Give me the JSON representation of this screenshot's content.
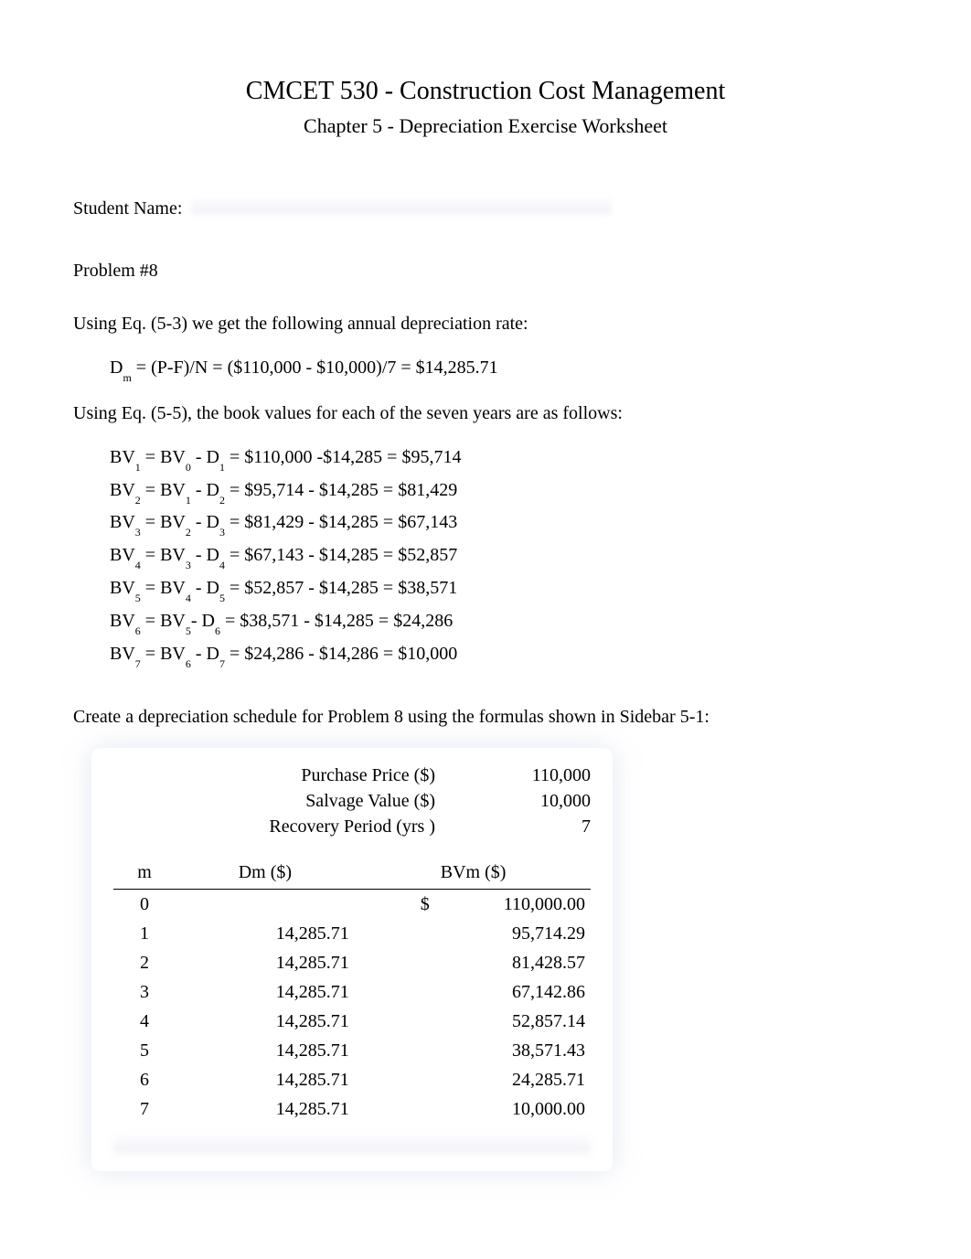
{
  "header": {
    "title": "CMCET 530 - Construction Cost Management",
    "subtitle": "Chapter 5 - Depreciation Exercise Worksheet"
  },
  "student_label": "Student Name:",
  "problem_label": "Problem #8",
  "line1": "Using Eq. (5-3) we get the following annual depreciation rate:",
  "dm_eq_prefix": "D",
  "dm_eq_sub": "m",
  "dm_eq_rest": " = (P-F)/N = ($110,000 - $10,000)/7 = $14,285.71",
  "line2": "Using Eq. (5-5), the book values for each of the seven years are as follows:",
  "bv_rows": [
    {
      "a": "BV",
      "as": "1",
      "b": " = BV",
      "bs": "0",
      "c": " - D",
      "cs": "1",
      "d": " = $110,000 -$14,285 = $95,714"
    },
    {
      "a": "BV",
      "as": "2",
      "b": " = BV",
      "bs": "1",
      "c": " - D",
      "cs": "2",
      "d": " = $95,714 - $14,285 = $81,429"
    },
    {
      "a": "BV",
      "as": "3",
      "b": " = BV",
      "bs": "2",
      "c": " - D",
      "cs": "3",
      "d": " = $81,429 - $14,285 = $67,143"
    },
    {
      "a": "BV",
      "as": "4",
      "b": " = BV",
      "bs": "3",
      "c": " - D",
      "cs": "4",
      "d": " = $67,143 - $14,285 = $52,857"
    },
    {
      "a": "BV",
      "as": "5",
      "b": " = BV",
      "bs": "4",
      "c": " - D",
      "cs": "5",
      "d": " = $52,857 - $14,285 = $38,571"
    },
    {
      "a": "BV",
      "as": "6",
      "b": " = BV",
      "bs": "5",
      "c": "- D",
      "cs": "6",
      "d": " = $38,571 - $14,285 = $24,286"
    },
    {
      "a": "BV",
      "as": "7",
      "b": " = BV",
      "bs": "6",
      "c": " - D",
      "cs": "7",
      "d": " = $24,286 - $14,286 = $10,000"
    }
  ],
  "instruction": "Create a depreciation schedule for Problem 8 using the formulas shown in Sidebar 5-1:",
  "params": {
    "purchase_label": "Purchase Price ($)",
    "purchase_value": "110,000",
    "salvage_label": "Salvage Value ($)",
    "salvage_value": "10,000",
    "recovery_label": "Recovery Period (yrs )",
    "recovery_value": "7"
  },
  "table": {
    "headers": {
      "m": "m",
      "dm": "Dm ($)",
      "bvm": "BVm ($)"
    },
    "rows": [
      {
        "m": "0",
        "dm": "",
        "dollar": "$",
        "bv": "110,000.00"
      },
      {
        "m": "1",
        "dm": "14,285.71",
        "dollar": "",
        "bv": "95,714.29"
      },
      {
        "m": "2",
        "dm": "14,285.71",
        "dollar": "",
        "bv": "81,428.57"
      },
      {
        "m": "3",
        "dm": "14,285.71",
        "dollar": "",
        "bv": "67,142.86"
      },
      {
        "m": "4",
        "dm": "14,285.71",
        "dollar": "",
        "bv": "52,857.14"
      },
      {
        "m": "5",
        "dm": "14,285.71",
        "dollar": "",
        "bv": "38,571.43"
      },
      {
        "m": "6",
        "dm": "14,285.71",
        "dollar": "",
        "bv": "24,285.71"
      },
      {
        "m": "7",
        "dm": "14,285.71",
        "dollar": "",
        "bv": "10,000.00"
      }
    ]
  },
  "colors": {
    "text": "#000000",
    "background": "#ffffff",
    "blur_shadow": "rgba(180,190,220,0.35)"
  },
  "fonts": {
    "family": "Times New Roman",
    "body_size": 20,
    "title_size": 28,
    "subtitle_size": 22,
    "subscript_size": 12
  }
}
